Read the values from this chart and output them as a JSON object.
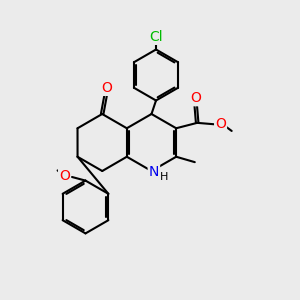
{
  "bg_color": "#ebebeb",
  "bond_color": "#000000",
  "bond_width": 1.5,
  "atom_colors": {
    "Cl": "#00bb00",
    "O": "#ff0000",
    "N": "#0000ee",
    "H": "#000000",
    "C": "#000000"
  },
  "font_size": 9
}
